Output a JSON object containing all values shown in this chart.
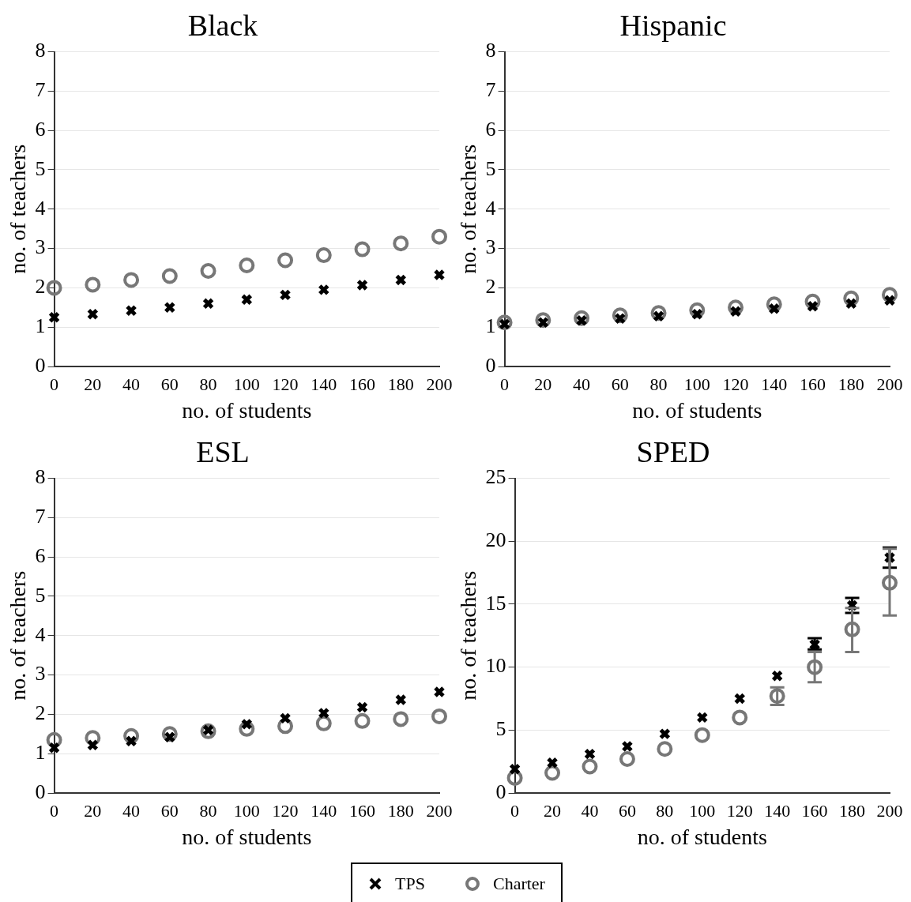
{
  "chart_data": [
    {
      "type": "scatter",
      "title": "Black",
      "xlabel": "no. of students",
      "ylabel": "no. of teachers",
      "x": [
        0,
        20,
        40,
        60,
        80,
        100,
        120,
        140,
        160,
        180,
        200
      ],
      "xlim": [
        0,
        200
      ],
      "xticks": [
        0,
        20,
        40,
        60,
        80,
        100,
        120,
        140,
        160,
        180,
        200
      ],
      "ylim": [
        0,
        8
      ],
      "yticks": [
        0,
        1,
        2,
        3,
        4,
        5,
        6,
        7,
        8
      ],
      "grid": "y",
      "legend": "bottom",
      "series": [
        {
          "name": "TPS",
          "color": "#000000",
          "marker": "cross",
          "values": [
            1.25,
            1.33,
            1.42,
            1.5,
            1.6,
            1.7,
            1.82,
            1.95,
            2.07,
            2.2,
            2.33
          ]
        },
        {
          "name": "Charter",
          "color": "#777777",
          "marker": "circle",
          "values": [
            2.0,
            2.08,
            2.2,
            2.3,
            2.43,
            2.57,
            2.7,
            2.83,
            2.98,
            3.13,
            3.3
          ]
        }
      ]
    },
    {
      "type": "scatter",
      "title": "Hispanic",
      "xlabel": "no. of students",
      "ylabel": "no. of teachers",
      "x": [
        0,
        20,
        40,
        60,
        80,
        100,
        120,
        140,
        160,
        180,
        200
      ],
      "xlim": [
        0,
        200
      ],
      "xticks": [
        0,
        20,
        40,
        60,
        80,
        100,
        120,
        140,
        160,
        180,
        200
      ],
      "ylim": [
        0,
        8
      ],
      "yticks": [
        0,
        1,
        2,
        3,
        4,
        5,
        6,
        7,
        8
      ],
      "grid": "y",
      "legend": "bottom",
      "series": [
        {
          "name": "TPS",
          "color": "#000000",
          "marker": "cross",
          "values": [
            1.08,
            1.12,
            1.17,
            1.22,
            1.28,
            1.33,
            1.4,
            1.47,
            1.53,
            1.6,
            1.68
          ]
        },
        {
          "name": "Charter",
          "color": "#777777",
          "marker": "circle",
          "values": [
            1.12,
            1.18,
            1.23,
            1.3,
            1.36,
            1.43,
            1.5,
            1.58,
            1.65,
            1.73,
            1.82
          ]
        }
      ]
    },
    {
      "type": "scatter",
      "title": "ESL",
      "xlabel": "no. of students",
      "ylabel": "no. of teachers",
      "x": [
        0,
        20,
        40,
        60,
        80,
        100,
        120,
        140,
        160,
        180,
        200
      ],
      "xlim": [
        0,
        200
      ],
      "xticks": [
        0,
        20,
        40,
        60,
        80,
        100,
        120,
        140,
        160,
        180,
        200
      ],
      "ylim": [
        0,
        8
      ],
      "yticks": [
        0,
        1,
        2,
        3,
        4,
        5,
        6,
        7,
        8
      ],
      "grid": "y",
      "legend": "bottom",
      "series": [
        {
          "name": "TPS",
          "color": "#000000",
          "marker": "cross",
          "values": [
            1.15,
            1.22,
            1.32,
            1.42,
            1.6,
            1.75,
            1.9,
            2.03,
            2.18,
            2.37,
            2.57
          ]
        },
        {
          "name": "Charter",
          "color": "#777777",
          "marker": "circle",
          "values": [
            1.35,
            1.4,
            1.45,
            1.5,
            1.57,
            1.63,
            1.7,
            1.77,
            1.83,
            1.88,
            1.95
          ]
        }
      ]
    },
    {
      "type": "scatter",
      "title": "SPED",
      "xlabel": "no. of students",
      "ylabel": "no. of teachers",
      "x": [
        0,
        20,
        40,
        60,
        80,
        100,
        120,
        140,
        160,
        180,
        200
      ],
      "xlim": [
        0,
        200
      ],
      "xticks": [
        0,
        20,
        40,
        60,
        80,
        100,
        120,
        140,
        160,
        180,
        200
      ],
      "ylim": [
        0,
        25
      ],
      "yticks": [
        0,
        5,
        10,
        15,
        20,
        25
      ],
      "grid": "y",
      "legend": "bottom",
      "series": [
        {
          "name": "TPS",
          "color": "#000000",
          "marker": "cross",
          "values": [
            1.9,
            2.4,
            3.1,
            3.7,
            4.7,
            6.0,
            7.5,
            9.3,
            11.8,
            14.9,
            18.7
          ],
          "errors": [
            null,
            null,
            null,
            null,
            null,
            null,
            null,
            null,
            [
              11.4,
              12.3
            ],
            [
              14.3,
              15.5
            ],
            [
              17.9,
              19.5
            ]
          ]
        },
        {
          "name": "Charter",
          "color": "#777777",
          "marker": "circle",
          "values": [
            1.2,
            1.6,
            2.1,
            2.7,
            3.5,
            4.6,
            6.0,
            7.7,
            10.0,
            13.0,
            16.7
          ],
          "errors": [
            null,
            null,
            null,
            null,
            null,
            null,
            null,
            [
              7.0,
              8.4
            ],
            [
              8.8,
              11.2
            ],
            [
              11.2,
              14.7
            ],
            [
              14.1,
              19.4
            ]
          ]
        }
      ]
    }
  ]
}
